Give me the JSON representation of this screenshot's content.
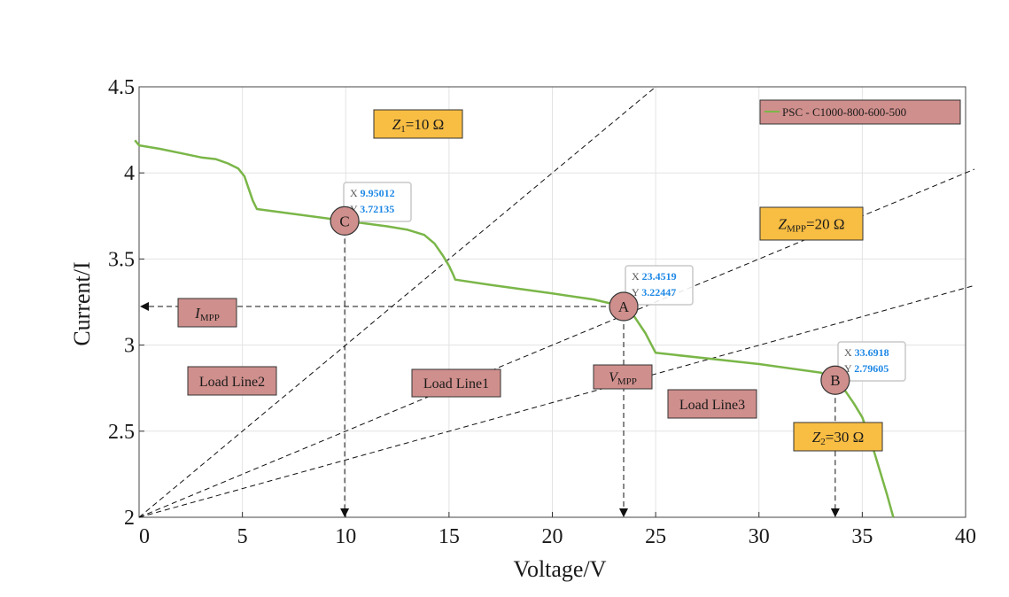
{
  "chart_data": {
    "type": "line",
    "xlabel": "Voltage/V",
    "ylabel": "Current/I",
    "xlim": [
      0,
      40
    ],
    "ylim": [
      2,
      4.5
    ],
    "grid": true,
    "x_ticks": [
      "0",
      "5",
      "10",
      "15",
      "20",
      "25",
      "30",
      "35",
      "40"
    ],
    "y_ticks": [
      "2",
      "2.5",
      "3",
      "3.5",
      "4",
      "4.5"
    ],
    "legend": {
      "position": "top-right",
      "entry": "PSC - C1000-800-600-500"
    },
    "series": [
      {
        "name": "PSC - C1000-800-600-500",
        "color": "#7ab648",
        "x": [
          -0.2,
          0,
          1,
          2,
          3,
          3.7,
          4.3,
          4.8,
          5.1,
          5.3,
          5.5,
          5.7,
          10,
          12,
          13,
          13.8,
          14.3,
          14.7,
          15,
          15.2,
          15.3,
          17,
          20,
          22,
          23.4519,
          24,
          24.5,
          25,
          30,
          33,
          33.6918,
          34.2,
          34.6,
          35,
          35.3,
          35.6,
          35.9,
          36.2,
          36.5
        ],
        "y": [
          4.19,
          4.16,
          4.14,
          4.115,
          4.09,
          4.08,
          4.055,
          4.025,
          3.98,
          3.91,
          3.84,
          3.79,
          3.72135,
          3.69,
          3.67,
          3.64,
          3.59,
          3.52,
          3.46,
          3.41,
          3.38,
          3.35,
          3.3,
          3.265,
          3.22447,
          3.16,
          3.07,
          2.955,
          2.89,
          2.84,
          2.79605,
          2.73,
          2.66,
          2.58,
          2.48,
          2.37,
          2.25,
          2.13,
          2.0
        ]
      }
    ],
    "load_lines": [
      {
        "name": "Load Line1",
        "label": "Z_MPP=20 Ω",
        "symbol": "Z",
        "sub": "MPP",
        "value": "=20 Ω",
        "slope": 0.05
      },
      {
        "name": "Load Line2",
        "label": "Z1=10 Ω",
        "symbol": "Z",
        "sub": "1",
        "value": "=10 Ω",
        "slope": 0.1
      },
      {
        "name": "Load Line3",
        "label": "Z2=30 Ω",
        "symbol": "Z",
        "sub": "2",
        "value": "=30 Ω",
        "slope": 0.0333
      }
    ],
    "points": [
      {
        "name": "A",
        "x": 23.4519,
        "y": 3.22447,
        "x_text": "23.4519",
        "y_text": "3.22447"
      },
      {
        "name": "B",
        "x": 33.6918,
        "y": 2.79605,
        "x_text": "33.6918",
        "y_text": "2.79605"
      },
      {
        "name": "C",
        "x": 9.95012,
        "y": 3.72135,
        "x_text": "9.95012",
        "y_text": "3.72135"
      }
    ],
    "annotations": {
      "impp": {
        "symbol": "I",
        "sub": "MPP"
      },
      "vmpp": {
        "symbol": "V",
        "sub": "MPP"
      },
      "load_line1": "Load Line1",
      "load_line2": "Load Line2",
      "load_line3": "Load Line3"
    },
    "datatip_x_prefix": "X",
    "datatip_y_prefix": "Y",
    "colors": {
      "curve": "#7ab648",
      "label_box": "#cf8f8c",
      "z_box": "#f8bd43",
      "point_fill": "#cf8f8c",
      "datatip_value": "#1e88e5"
    }
  }
}
